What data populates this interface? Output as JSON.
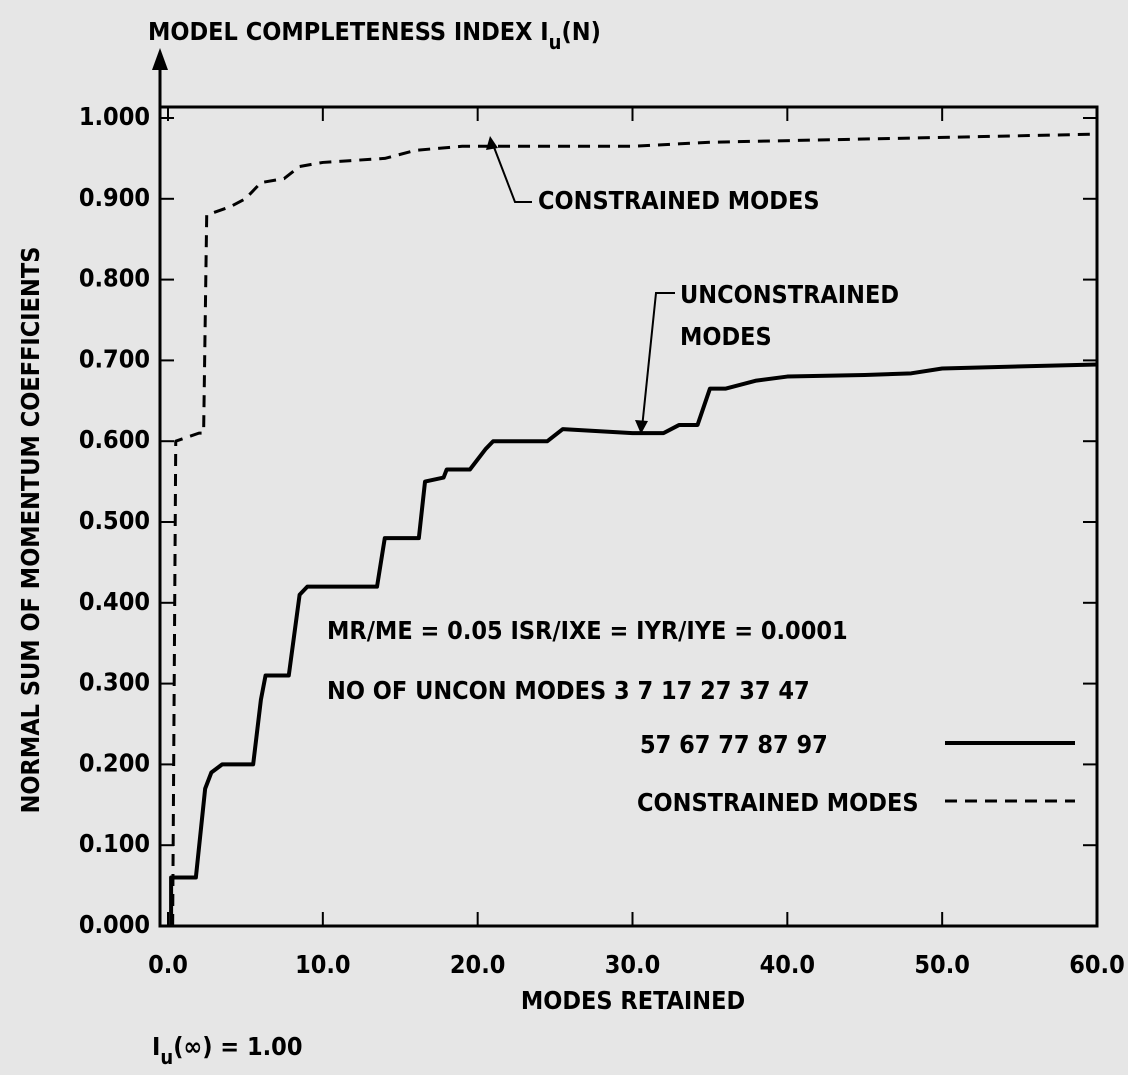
{
  "chart_data": {
    "type": "line",
    "title": [
      "MODEL COMPLETENESS INDEX I",
      "u",
      "(N)"
    ],
    "xlabel": "MODES RETAINED",
    "ylabel": "NORMAL SUM OF MOMENTUM COEFFICIENTS",
    "footnote": [
      "I",
      "u",
      "(∞) = 1.00"
    ],
    "annotations": {
      "constrained": "CONSTRAINED MODES",
      "unconstrained": [
        "UNCONSTRAINED",
        "MODES"
      ],
      "parameters": "MR/ME = 0.05 ISR/IXE = IYR/IYE = 0.0001",
      "uncon_modes": "NO OF UNCON MODES 3 7 17 27 37 47"
    },
    "xlim": [
      0,
      60
    ],
    "ylim": [
      0,
      1.0
    ],
    "xticks": [
      {
        "value": 0,
        "label": "0.0"
      },
      {
        "value": 10,
        "label": "10.0"
      },
      {
        "value": 20,
        "label": "20.0"
      },
      {
        "value": 30,
        "label": "30.0"
      },
      {
        "value": 40,
        "label": "40.0"
      },
      {
        "value": 50,
        "label": "50.0"
      },
      {
        "value": 60,
        "label": "60.0"
      }
    ],
    "yticks": [
      {
        "value": 0,
        "label": "0.000"
      },
      {
        "value": 0.1,
        "label": "0.100"
      },
      {
        "value": 0.2,
        "label": "0.200"
      },
      {
        "value": 0.3,
        "label": "0.300"
      },
      {
        "value": 0.4,
        "label": "0.400"
      },
      {
        "value": 0.5,
        "label": "0.500"
      },
      {
        "value": 0.6,
        "label": "0.600"
      },
      {
        "value": 0.7,
        "label": "0.700"
      },
      {
        "value": 0.8,
        "label": "0.800"
      },
      {
        "value": 0.9,
        "label": "0.900"
      },
      {
        "value": 1.0,
        "label": "1.000"
      }
    ],
    "series": [
      {
        "name": "57 67 77 87 97",
        "color": "#000000",
        "dash": false,
        "x": [
          0.2,
          0.2,
          1.8,
          2.4,
          2.8,
          3.5,
          5.5,
          6.0,
          6.3,
          7.8,
          8.5,
          9.0,
          13.5,
          14.0,
          16.2,
          16.6,
          17.8,
          18.0,
          19.5,
          20.5,
          21.0,
          24.5,
          25.5,
          30.0,
          32.0,
          33.0,
          34.2,
          35.0,
          36.0,
          38.0,
          40.0,
          45.0,
          48.0,
          50.0,
          60.0
        ],
        "values": [
          0.0,
          0.06,
          0.06,
          0.17,
          0.19,
          0.2,
          0.2,
          0.28,
          0.31,
          0.31,
          0.41,
          0.42,
          0.42,
          0.48,
          0.48,
          0.55,
          0.555,
          0.565,
          0.565,
          0.59,
          0.6,
          0.6,
          0.615,
          0.61,
          0.61,
          0.62,
          0.62,
          0.665,
          0.665,
          0.675,
          0.68,
          0.682,
          0.684,
          0.69,
          0.695
        ]
      },
      {
        "name": "CONSTRAINED MODES",
        "color": "#000000",
        "dash": true,
        "x": [
          0.3,
          0.5,
          2.0,
          2.3,
          2.5,
          4.0,
          5.0,
          6.0,
          7.5,
          8.5,
          10.0,
          14.0,
          16.0,
          19.0,
          30.0,
          35.0,
          60.0
        ],
        "values": [
          0.0,
          0.6,
          0.61,
          0.61,
          0.88,
          0.89,
          0.9,
          0.92,
          0.925,
          0.94,
          0.945,
          0.95,
          0.96,
          0.965,
          0.965,
          0.97,
          0.98
        ]
      }
    ]
  }
}
